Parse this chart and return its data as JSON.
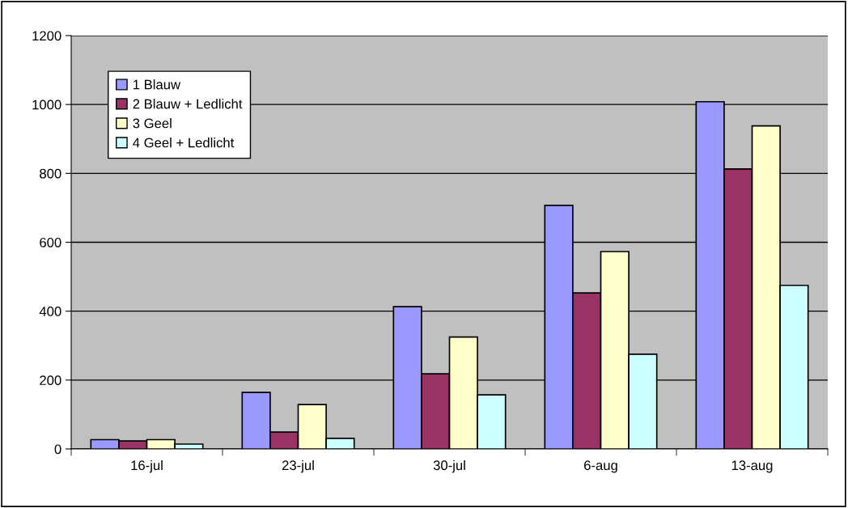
{
  "chart_data": {
    "type": "bar",
    "categories": [
      "16-jul",
      "23-jul",
      "30-jul",
      "6-aug",
      "13-aug"
    ],
    "series": [
      {
        "name": "1 Blauw",
        "color": "#9999ff",
        "values": [
          27,
          164,
          413,
          707,
          1008
        ]
      },
      {
        "name": "2 Blauw + Ledlicht",
        "color": "#993366",
        "values": [
          23,
          49,
          218,
          453,
          813
        ]
      },
      {
        "name": "3 Geel",
        "color": "#ffffcc",
        "values": [
          27,
          129,
          325,
          573,
          938
        ]
      },
      {
        "name": "4 Geel + Ledlicht",
        "color": "#ccffff",
        "values": [
          14,
          31,
          157,
          275,
          475
        ]
      }
    ],
    "ylim": [
      0,
      1200
    ],
    "yticks": [
      0,
      200,
      400,
      600,
      800,
      1000,
      1200
    ],
    "grid": "y",
    "legend": "top left"
  }
}
